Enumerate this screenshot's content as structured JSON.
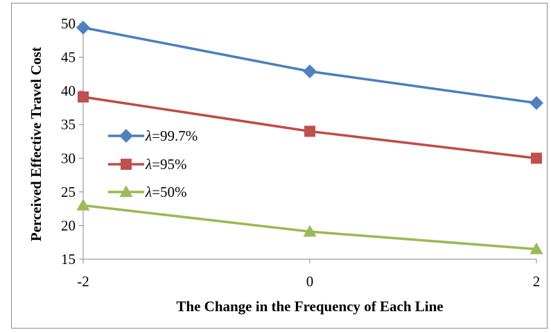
{
  "chart_data": {
    "type": "line",
    "title": "",
    "xlabel": "The Change in the Frequency of Each Line",
    "ylabel": "Perceived Effective Travel Cost",
    "x": [
      -2,
      0,
      2
    ],
    "x_tick_labels": [
      "-2",
      "0",
      "2"
    ],
    "ylim": [
      15,
      50
    ],
    "y_ticks": [
      15,
      20,
      25,
      30,
      35,
      40,
      45,
      50
    ],
    "grid": false,
    "legend_position": "left",
    "series": [
      {
        "name": "λ=99.7%",
        "symbol": "λ",
        "suffix": "=99.7%",
        "marker": "diamond",
        "color": "#4a7ebb",
        "marker_color": "#4f81bd",
        "values": [
          49.4,
          42.9,
          38.2
        ]
      },
      {
        "name": "λ=95%",
        "symbol": "λ",
        "suffix": "=95%",
        "marker": "square",
        "color": "#be4b48",
        "marker_color": "#c0504d",
        "values": [
          39.1,
          34.0,
          30.0
        ]
      },
      {
        "name": "λ=50%",
        "symbol": "λ",
        "suffix": "=50%",
        "marker": "triangle",
        "color": "#98b954",
        "marker_color": "#9bbb59",
        "values": [
          23.0,
          19.1,
          16.5
        ]
      }
    ]
  }
}
